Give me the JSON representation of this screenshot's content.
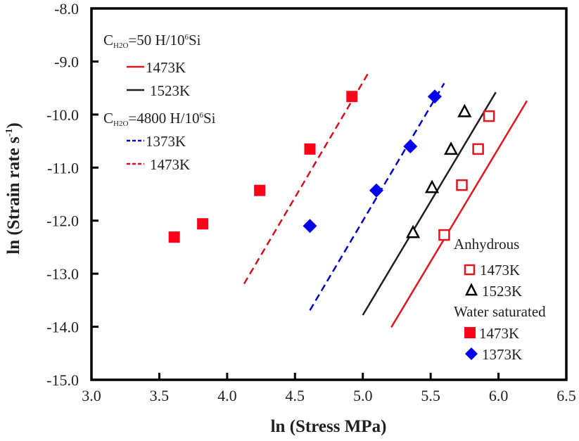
{
  "chart_data": {
    "type": "scatter",
    "title": "",
    "xlabel": "ln (Stress MPa)",
    "ylabel": "ln (Strain rate s",
    "ylabel_superscript": "-1",
    "ylabel_close": ")",
    "xlim": [
      3.0,
      6.5
    ],
    "ylim": [
      -15.0,
      -8.0
    ],
    "xticks": [
      3.0,
      3.5,
      4.0,
      4.5,
      5.0,
      5.5,
      6.0,
      6.5
    ],
    "xtick_labels": [
      "3.0",
      "3.5",
      "4.0",
      "4.5",
      "5.0",
      "5.5",
      "6.0",
      "6.5"
    ],
    "yticks": [
      -8.0,
      -9.0,
      -10.0,
      -11.0,
      -12.0,
      -13.0,
      -14.0,
      -15.0
    ],
    "ytick_labels": [
      "-8.0",
      "-9.0",
      "-10.0",
      "-11.0",
      "-12.0",
      "-13.0",
      "-14.0",
      "-15.0"
    ],
    "grid": false,
    "points": [
      {
        "name": "Anhydrous 1473K",
        "marker": "open-square",
        "color": "#e0151f",
        "x": [
          5.6,
          5.73,
          5.85,
          5.93
        ],
        "y": [
          -12.27,
          -11.33,
          -10.65,
          -10.03
        ]
      },
      {
        "name": "Anhydrous 1523K",
        "marker": "open-triangle",
        "color": "#000000",
        "x": [
          5.37,
          5.51,
          5.65,
          5.75
        ],
        "y": [
          -12.22,
          -11.37,
          -10.65,
          -9.94
        ]
      },
      {
        "name": "Water saturated 1473K",
        "marker": "filled-square",
        "color": "#ff0018",
        "x": [
          3.61,
          3.82,
          4.24,
          4.61,
          4.92
        ],
        "y": [
          -12.31,
          -12.06,
          -11.43,
          -10.65,
          -9.66
        ]
      },
      {
        "name": "Water saturated 1373K",
        "marker": "filled-diamond",
        "color": "#0000ee",
        "x": [
          4.61,
          5.1,
          5.35,
          5.53
        ],
        "y": [
          -12.1,
          -11.43,
          -10.6,
          -9.66
        ]
      }
    ],
    "lines": [
      {
        "name": "CH2O=50 1473K",
        "style": "solid",
        "color": "#e0151f",
        "x": [
          5.21,
          6.21
        ],
        "y": [
          -14.01,
          -9.74
        ]
      },
      {
        "name": "CH2O=50 1523K",
        "style": "solid",
        "color": "#231f20",
        "x": [
          5.0,
          5.98
        ],
        "y": [
          -13.78,
          -9.58
        ]
      },
      {
        "name": "CH2O=4800 1373K",
        "style": "dashed",
        "color": "#0000cc",
        "x": [
          4.61,
          5.6
        ],
        "y": [
          -13.69,
          -9.41
        ]
      },
      {
        "name": "CH2O=4800 1473K",
        "style": "dashed",
        "color": "#d0121e",
        "x": [
          4.125,
          5.04
        ],
        "y": [
          -13.19,
          -9.22
        ]
      }
    ],
    "legend_lines": {
      "placement": "top-left",
      "group1_prefix": "C",
      "group1_sub": "H2O",
      "group1_text": "=50 H/10",
      "group1_sup": "6",
      "group1_suffix": "Si",
      "group1_items": [
        {
          "label": "1473K",
          "color": "#e0151f",
          "style": "solid"
        },
        {
          "label": "1523K",
          "color": "#231f20",
          "style": "solid"
        }
      ],
      "group2_prefix": "C",
      "group2_sub": "H2O",
      "group2_text": "=4800 H/10",
      "group2_sup": "6",
      "group2_suffix": "Si",
      "group2_items": [
        {
          "label": "1373K",
          "color": "#0000cc",
          "style": "dashed"
        },
        {
          "label": "1473K",
          "color": "#d0121e",
          "style": "dashed"
        }
      ]
    },
    "legend_markers": {
      "placement": "bottom-right",
      "group1_title": "Anhydrous",
      "group1_items": [
        {
          "label": "1473K",
          "marker": "open-square",
          "color": "#e0151f"
        },
        {
          "label": "1523K",
          "marker": "open-triangle",
          "color": "#000000"
        }
      ],
      "group2_title": "Water saturated",
      "group2_items": [
        {
          "label": "1473K",
          "marker": "filled-square",
          "color": "#ff0018"
        },
        {
          "label": "1373K",
          "marker": "filled-diamond",
          "color": "#0000ee"
        }
      ]
    }
  }
}
